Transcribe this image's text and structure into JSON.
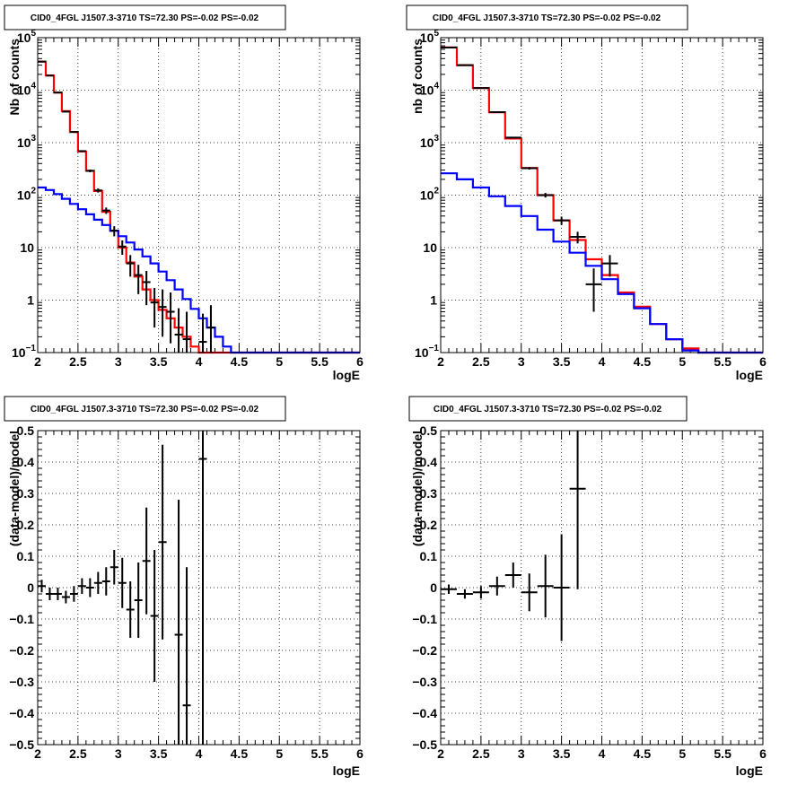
{
  "chart_data": [
    {
      "id": "counts-left",
      "type": "line",
      "title": "CID0_4FGL J1507.3-3710 TS=72.30 PS=-0.02 PS=-0.02",
      "xlabel": "logE",
      "ylabel": "Nb of counts",
      "xlim": [
        2,
        6
      ],
      "ylim": [
        0.1,
        100000
      ],
      "yscale": "log",
      "grid": true,
      "x_ticks": [
        "2",
        "2.5",
        "3",
        "3.5",
        "4",
        "4.5",
        "5",
        "5.5",
        "6"
      ],
      "y_ticks": [
        {
          "value": 0.1,
          "base": "10",
          "exp": "−1"
        },
        {
          "value": 1,
          "label": "1"
        },
        {
          "value": 10,
          "label": "10"
        },
        {
          "value": 100,
          "base": "10",
          "exp": "2"
        },
        {
          "value": 1000,
          "base": "10",
          "exp": "3"
        },
        {
          "value": 10000,
          "base": "10",
          "exp": "4"
        },
        {
          "value": 100000,
          "base": "10",
          "exp": "5"
        }
      ],
      "bin_edges": [
        2.0,
        2.1,
        2.2,
        2.3,
        2.4,
        2.5,
        2.6,
        2.7,
        2.8,
        2.9,
        3.0,
        3.1,
        3.2,
        3.3,
        3.4,
        3.5,
        3.6,
        3.7,
        3.8,
        3.9,
        4.0,
        4.1,
        4.2,
        4.3,
        4.4,
        4.5,
        4.6,
        4.7,
        4.8,
        4.9,
        5.0,
        5.1,
        5.2,
        5.3,
        5.4,
        5.5,
        5.6,
        5.7,
        5.8,
        5.9,
        6.0
      ],
      "series": [
        {
          "color": "#ff0000",
          "style": "step",
          "values": [
            35000,
            19000,
            9000,
            4000,
            1600,
            680,
            290,
            120,
            48,
            21,
            10,
            5.2,
            2.8,
            1.6,
            1.0,
            0.65,
            0.45,
            0.3,
            0.2,
            0.13,
            0.1,
            0.1,
            0.1,
            0.1,
            0.1,
            0.1,
            0.1,
            0.1,
            0.1,
            0.1,
            0.1,
            0.1,
            0.1,
            0.1,
            0.1,
            0.1,
            0.1,
            0.1,
            0.1,
            0.1
          ]
        },
        {
          "color": "#0000ff",
          "style": "step",
          "values": [
            140,
            125,
            105,
            85,
            68,
            54,
            43,
            34,
            27,
            21,
            16.5,
            12.5,
            9.2,
            6.8,
            5.0,
            3.5,
            2.4,
            1.6,
            1.05,
            0.68,
            0.45,
            0.3,
            0.2,
            0.13,
            0.1,
            0.1,
            0.1,
            0.1,
            0.1,
            0.1,
            0.1,
            0.1,
            0.1,
            0.1,
            0.1,
            0.1,
            0.1,
            0.1,
            0.1,
            0.1
          ]
        }
      ],
      "points": [
        {
          "x": 2.05,
          "y": 35000,
          "lo": 34800,
          "hi": 35200
        },
        {
          "x": 2.15,
          "y": 19000,
          "lo": 18800,
          "hi": 19200
        },
        {
          "x": 2.25,
          "y": 9000,
          "lo": 8850,
          "hi": 9150
        },
        {
          "x": 2.35,
          "y": 3900,
          "lo": 3800,
          "hi": 4000
        },
        {
          "x": 2.45,
          "y": 1600,
          "lo": 1560,
          "hi": 1640
        },
        {
          "x": 2.55,
          "y": 690,
          "lo": 665,
          "hi": 715
        },
        {
          "x": 2.65,
          "y": 290,
          "lo": 273,
          "hi": 307
        },
        {
          "x": 2.75,
          "y": 123,
          "lo": 112,
          "hi": 134
        },
        {
          "x": 2.85,
          "y": 51,
          "lo": 44,
          "hi": 58
        },
        {
          "x": 2.95,
          "y": 21,
          "lo": 16.4,
          "hi": 25.6
        },
        {
          "x": 3.05,
          "y": 10.5,
          "lo": 7.3,
          "hi": 13.7
        },
        {
          "x": 3.15,
          "y": 5,
          "lo": 2.8,
          "hi": 7.2
        },
        {
          "x": 3.25,
          "y": 3,
          "lo": 1.3,
          "hi": 4.7
        },
        {
          "x": 3.35,
          "y": 2.2,
          "lo": 0.8,
          "hi": 3.6
        },
        {
          "x": 3.45,
          "y": 0.9,
          "lo": 0.3,
          "hi": 1.7
        },
        {
          "x": 3.55,
          "y": 0.74,
          "lo": 0.2,
          "hi": 1.6
        },
        {
          "x": 3.65,
          "y": 0.6,
          "lo": 0.15,
          "hi": 1.4
        },
        {
          "x": 3.75,
          "y": 0.22,
          "lo": 0.06,
          "hi": 0.7
        },
        {
          "x": 3.85,
          "y": 0.18,
          "lo": 0.06,
          "hi": 0.6
        },
        {
          "x": 4.05,
          "y": 0.16,
          "lo": 0.06,
          "hi": 0.55
        },
        {
          "x": 4.15,
          "y": 0.3,
          "lo": 0.1,
          "hi": 0.8
        }
      ]
    },
    {
      "id": "counts-right",
      "type": "line",
      "title": "CID0_4FGL J1507.3-3710 TS=72.30 PS=-0.02 PS=-0.02",
      "xlabel": "logE",
      "ylabel": "nb of counts",
      "xlim": [
        2,
        6
      ],
      "ylim": [
        0.1,
        100000
      ],
      "yscale": "log",
      "grid": true,
      "x_ticks": [
        "2",
        "2.5",
        "3",
        "3.5",
        "4",
        "4.5",
        "5",
        "5.5",
        "6"
      ],
      "y_ticks": [
        {
          "value": 0.1,
          "base": "10",
          "exp": "−1"
        },
        {
          "value": 1,
          "label": "1"
        },
        {
          "value": 10,
          "label": "10"
        },
        {
          "value": 100,
          "base": "10",
          "exp": "2"
        },
        {
          "value": 1000,
          "base": "10",
          "exp": "3"
        },
        {
          "value": 10000,
          "base": "10",
          "exp": "4"
        },
        {
          "value": 100000,
          "base": "10",
          "exp": "5"
        }
      ],
      "bin_edges": [
        2.0,
        2.2,
        2.4,
        2.6,
        2.8,
        3.0,
        3.2,
        3.4,
        3.6,
        3.8,
        4.0,
        4.2,
        4.4,
        4.6,
        4.8,
        5.0,
        5.2,
        5.4,
        5.6,
        5.8,
        6.0
      ],
      "series": [
        {
          "color": "#ff0000",
          "style": "step",
          "values": [
            65000,
            30000,
            11000,
            3800,
            1200,
            330,
            100,
            33,
            14,
            6,
            3,
            1.4,
            0.75,
            0.35,
            0.18,
            0.12,
            0.1,
            0.1,
            0.1,
            0.1
          ]
        },
        {
          "color": "#0000ff",
          "style": "step",
          "values": [
            260,
            200,
            140,
            95,
            62,
            40,
            22,
            13,
            8,
            4.5,
            2.5,
            1.3,
            0.7,
            0.35,
            0.18,
            0.11,
            0.1,
            0.1,
            0.1,
            0.1
          ]
        }
      ],
      "points": [
        {
          "x": 2.1,
          "y": 65000,
          "lo": 64700,
          "hi": 65300
        },
        {
          "x": 2.3,
          "y": 30000,
          "lo": 29800,
          "hi": 30200
        },
        {
          "x": 2.5,
          "y": 11000,
          "lo": 10890,
          "hi": 11110
        },
        {
          "x": 2.7,
          "y": 3820,
          "lo": 3760,
          "hi": 3880
        },
        {
          "x": 2.9,
          "y": 1250,
          "lo": 1215,
          "hi": 1285
        },
        {
          "x": 3.1,
          "y": 325,
          "lo": 307,
          "hi": 343
        },
        {
          "x": 3.3,
          "y": 100,
          "lo": 90,
          "hi": 110
        },
        {
          "x": 3.5,
          "y": 33,
          "lo": 27,
          "hi": 39
        },
        {
          "x": 3.7,
          "y": 16,
          "lo": 12,
          "hi": 20
        },
        {
          "x": 3.9,
          "y": 2,
          "lo": 0.6,
          "hi": 4
        },
        {
          "x": 4.1,
          "y": 5,
          "lo": 2.8,
          "hi": 7.2
        }
      ]
    },
    {
      "id": "residual-left",
      "type": "scatter",
      "title": "CID0_4FGL J1507.3-3710 TS=72.30 PS=-0.02 PS=-0.02",
      "xlabel": "logE",
      "ylabel": "(data-model)/model",
      "xlim": [
        2,
        6
      ],
      "ylim": [
        -0.5,
        0.5
      ],
      "grid": true,
      "x_ticks": [
        "2",
        "2.5",
        "3",
        "3.5",
        "4",
        "4.5",
        "5",
        "5.5",
        "6"
      ],
      "y_ticks": [
        "−0.5",
        "−0.4",
        "−0.3",
        "−0.2",
        "−0.1",
        "0",
        "0.1",
        "0.2",
        "0.3",
        "0.4",
        "0.5"
      ],
      "points": [
        {
          "x": 2.05,
          "y": 0.005,
          "err": 0.02
        },
        {
          "x": 2.15,
          "y": -0.02,
          "err": 0.02
        },
        {
          "x": 2.25,
          "y": -0.02,
          "err": 0.02
        },
        {
          "x": 2.35,
          "y": -0.03,
          "err": 0.02
        },
        {
          "x": 2.45,
          "y": -0.02,
          "err": 0.025
        },
        {
          "x": 2.55,
          "y": 0.005,
          "err": 0.025
        },
        {
          "x": 2.65,
          "y": 0.0,
          "err": 0.03
        },
        {
          "x": 2.75,
          "y": 0.015,
          "err": 0.035
        },
        {
          "x": 2.85,
          "y": 0.02,
          "err": 0.045
        },
        {
          "x": 2.95,
          "y": 0.065,
          "err": 0.055
        },
        {
          "x": 3.05,
          "y": 0.015,
          "err": 0.08
        },
        {
          "x": 3.15,
          "y": -0.07,
          "err": 0.09
        },
        {
          "x": 3.25,
          "y": -0.04,
          "err": 0.12
        },
        {
          "x": 3.35,
          "y": 0.085,
          "err": 0.17
        },
        {
          "x": 3.45,
          "y": -0.09,
          "err": 0.21
        },
        {
          "x": 3.55,
          "y": 0.145,
          "err": 0.31
        },
        {
          "x": 3.75,
          "y": -0.15,
          "err": 0.43
        },
        {
          "x": 3.85,
          "y": -0.375,
          "err": 0.44
        },
        {
          "x": 4.05,
          "y": 0.41,
          "err": 1.0
        }
      ]
    },
    {
      "id": "residual-right",
      "type": "scatter",
      "title": "CID0_4FGL J1507.3-3710 TS=72.30 PS=-0.02 PS=-0.02",
      "xlabel": "logE",
      "ylabel": "(data-model)/model",
      "xlim": [
        2,
        6
      ],
      "ylim": [
        -0.5,
        0.5
      ],
      "grid": true,
      "x_ticks": [
        "2",
        "2.5",
        "3",
        "3.5",
        "4",
        "4.5",
        "5",
        "5.5",
        "6"
      ],
      "y_ticks": [
        "−0.5",
        "−0.4",
        "−0.3",
        "−0.2",
        "−0.1",
        "0",
        "0.1",
        "0.2",
        "0.3",
        "0.4",
        "0.5"
      ],
      "points": [
        {
          "x": 2.1,
          "y": -0.005,
          "err": 0.015
        },
        {
          "x": 2.3,
          "y": -0.02,
          "err": 0.015
        },
        {
          "x": 2.5,
          "y": -0.015,
          "err": 0.02
        },
        {
          "x": 2.7,
          "y": 0.005,
          "err": 0.03
        },
        {
          "x": 2.9,
          "y": 0.04,
          "err": 0.04
        },
        {
          "x": 3.1,
          "y": -0.015,
          "err": 0.06
        },
        {
          "x": 3.3,
          "y": 0.005,
          "err": 0.1
        },
        {
          "x": 3.5,
          "y": 0.0,
          "err": 0.17
        },
        {
          "x": 3.7,
          "y": 0.315,
          "err": 0.32
        }
      ]
    }
  ]
}
